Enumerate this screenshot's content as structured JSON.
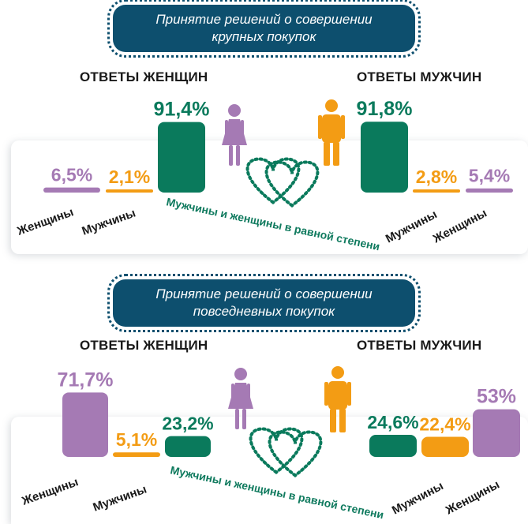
{
  "colors": {
    "women": "#a57ab4",
    "men": "#f39c14",
    "equal": "#0a7a5c",
    "title_bg": "#0d4f6e"
  },
  "chart_data": [
    {
      "type": "bar",
      "title_line1": "Принятие решений о совершении",
      "title_line2": "крупных покупок",
      "groups": [
        {
          "name": "ОТВЕТЫ ЖЕНЩИН",
          "categories": [
            "Женщины",
            "Мужчины",
            "Мужчины и женщины в равной степени"
          ],
          "values": [
            6.5,
            2.1,
            91.4
          ],
          "labels": [
            "6,5%",
            "2,1%",
            "91,4%"
          ]
        },
        {
          "name": "ОТВЕТЫ МУЖЧИН",
          "categories": [
            "Мужчины и женщины в равной степени",
            "Мужчины",
            "Женщины"
          ],
          "values": [
            91.8,
            2.8,
            5.4
          ],
          "labels": [
            "91,8%",
            "2,8%",
            "5,4%"
          ]
        }
      ],
      "equal_label": "Мужчины и женщины в равной степени"
    },
    {
      "type": "bar",
      "title_line1": "Принятие решений о совершении",
      "title_line2": "повседневных покупок",
      "groups": [
        {
          "name": "ОТВЕТЫ ЖЕНЩИН",
          "categories": [
            "Женщины",
            "Мужчины",
            "Мужчины и женщины в равной степени"
          ],
          "values": [
            71.7,
            5.1,
            23.2
          ],
          "labels": [
            "71,7%",
            "5,1%",
            "23,2%"
          ]
        },
        {
          "name": "ОТВЕТЫ МУЖЧИН",
          "categories": [
            "Мужчины и женщины в равной степени",
            "Мужчины",
            "Женщины"
          ],
          "values": [
            24.6,
            22.4,
            53
          ],
          "labels": [
            "24,6%",
            "22,4%",
            "53%"
          ]
        }
      ],
      "equal_label": "Мужчины и женщины в равной степени"
    }
  ],
  "icons": [
    "woman-icon",
    "man-icon",
    "dotted-hearts-icon"
  ]
}
